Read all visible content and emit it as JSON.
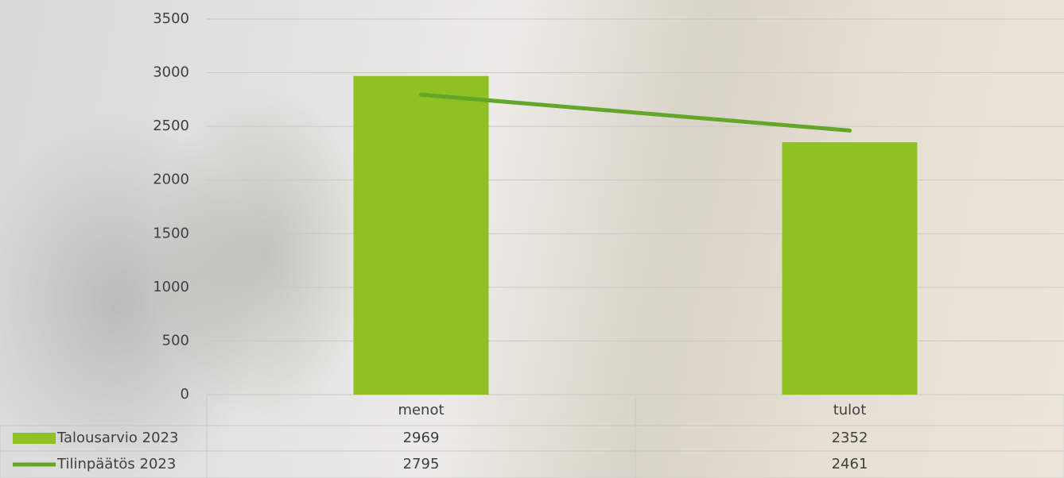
{
  "chart_data": {
    "type": "bar",
    "categories": [
      "menot",
      "tulot"
    ],
    "series": [
      {
        "name": "Talousarvio 2023",
        "type": "bar",
        "color": "#8fc125",
        "values": [
          2969,
          2352
        ]
      },
      {
        "name": "Tilinpäätös 2023",
        "type": "line",
        "color": "#63a62a",
        "values": [
          2795,
          2461
        ]
      }
    ],
    "ylim": [
      0,
      3500
    ],
    "yticks": [
      0,
      500,
      1000,
      1500,
      2000,
      2500,
      3000,
      3500
    ],
    "grid": true
  }
}
